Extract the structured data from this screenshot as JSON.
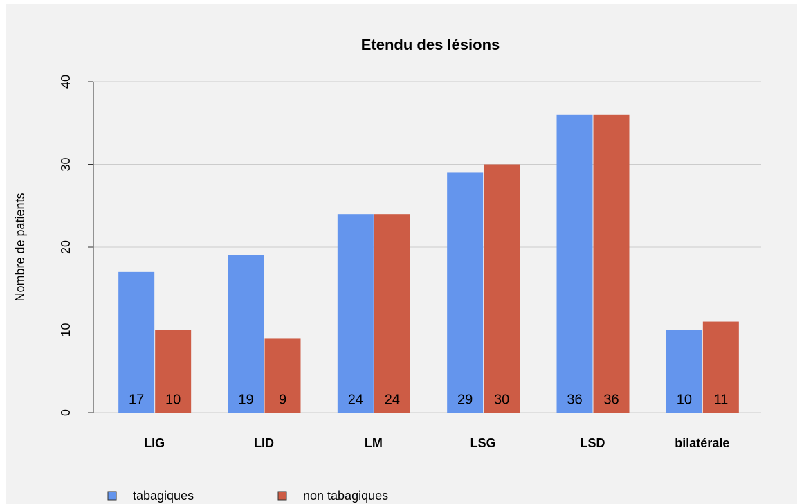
{
  "chart_data": {
    "type": "bar",
    "title": "Etendu des lésions",
    "y_label": "Nombre de patients",
    "categories": [
      "LIG",
      "LID",
      "LM",
      "LSG",
      "LSD",
      "bilatérale"
    ],
    "series": [
      {
        "name": "tabagiques",
        "color": "#6495ed",
        "values": [
          17,
          19,
          24,
          29,
          36,
          10
        ]
      },
      {
        "name": "non tabagiques",
        "color": "#cd5c45",
        "values": [
          10,
          9,
          24,
          30,
          36,
          11
        ]
      }
    ],
    "ylim": [
      0,
      40
    ],
    "yticks": [
      0,
      10,
      20,
      30,
      40
    ],
    "grid": true,
    "legend": "bottom-left"
  }
}
